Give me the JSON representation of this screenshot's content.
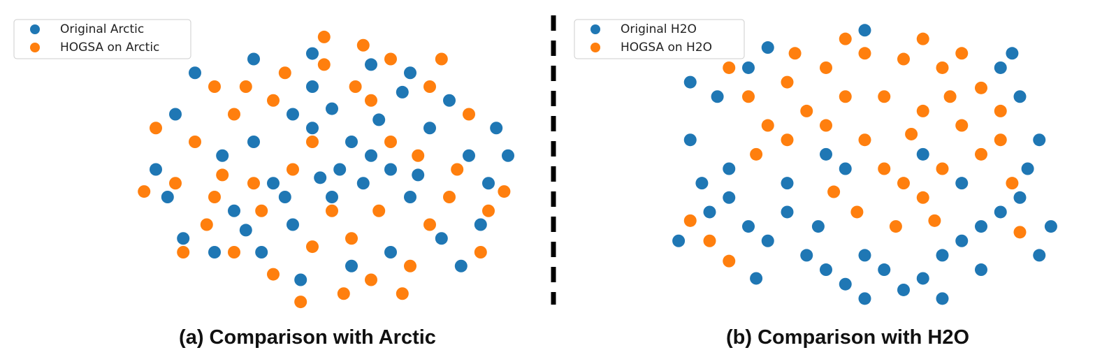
{
  "chart_data": [
    {
      "type": "scatter",
      "title": "(a) Comparison with Arctic",
      "xlim": [
        -50,
        50
      ],
      "ylim": [
        -50,
        50
      ],
      "legend": "upper left",
      "series": [
        {
          "name": "Original Arctic",
          "color": "#1f77b4",
          "x": [
            -10,
            -5,
            0,
            5,
            10,
            15,
            8,
            20,
            -20,
            -15,
            -25,
            -10,
            0,
            25,
            30,
            35,
            40,
            42,
            -40,
            -45,
            -42,
            -35,
            -20,
            -5,
            10,
            20,
            28,
            15,
            5,
            -8,
            -18,
            -30,
            -38,
            38,
            45,
            -28,
            2,
            -3,
            12,
            -12,
            22,
            -22,
            33,
            -5,
            18
          ],
          "values": [
            20,
            15,
            22,
            10,
            5,
            0,
            -5,
            -10,
            10,
            -5,
            -15,
            -20,
            -10,
            15,
            25,
            5,
            -5,
            15,
            20,
            0,
            -10,
            35,
            40,
            42,
            38,
            35,
            -25,
            -30,
            -35,
            -40,
            -30,
            -30,
            -25,
            -20,
            5,
            5,
            0,
            -3,
            18,
            -10,
            -2,
            -22,
            -35,
            30,
            28
          ]
        },
        {
          "name": "HOGSA on Arctic",
          "color": "#ff7f0e",
          "x": [
            -30,
            -25,
            -35,
            -40,
            -30,
            -32,
            -25,
            -15,
            -5,
            5,
            10,
            20,
            25,
            30,
            32,
            38,
            40,
            -10,
            -18,
            -12,
            -2,
            8,
            15,
            25,
            -22,
            -28,
            0,
            10,
            15,
            -5,
            -15,
            -45,
            -48,
            22,
            12,
            -8,
            3,
            18,
            28,
            -38,
            35,
            44,
            -20,
            6,
            -2
          ],
          "values": [
            30,
            20,
            10,
            -5,
            -10,
            -20,
            -30,
            -38,
            -28,
            -25,
            -40,
            -35,
            -20,
            -10,
            0,
            -30,
            -15,
            0,
            -15,
            35,
            38,
            45,
            40,
            30,
            30,
            -2,
            -15,
            25,
            10,
            10,
            25,
            15,
            -8,
            5,
            -15,
            -48,
            -45,
            -45,
            40,
            -30,
            20,
            -8,
            -5,
            30,
            48
          ]
        }
      ]
    },
    {
      "type": "scatter",
      "title": "(b) Comparison with H2O",
      "xlim": [
        -50,
        50
      ],
      "ylim": [
        -50,
        50
      ],
      "legend": "upper left",
      "series": [
        {
          "name": "Original H2O",
          "color": "#1f77b4",
          "x": [
            -45,
            -42,
            -40,
            -35,
            -30,
            -25,
            -20,
            -15,
            -10,
            -5,
            0,
            5,
            10,
            15,
            20,
            25,
            30,
            35,
            40,
            42,
            45,
            40,
            35,
            -38,
            -30,
            -20,
            -10,
            -5,
            -45,
            48,
            30,
            -28,
            0,
            20,
            -48,
            45,
            15,
            -12,
            25,
            -35,
            38,
            -25,
            0
          ],
          "values": [
            10,
            -5,
            -15,
            -10,
            -20,
            -25,
            -15,
            -30,
            -35,
            -40,
            -30,
            -35,
            -42,
            -38,
            -30,
            -25,
            -20,
            -15,
            -10,
            0,
            10,
            25,
            35,
            25,
            35,
            -5,
            5,
            0,
            30,
            -20,
            -35,
            -38,
            -45,
            -45,
            -25,
            -30,
            5,
            -20,
            -5,
            0,
            40,
            42,
            48
          ]
        },
        {
          "name": "HOGSA on H2O",
          "color": "#ff7f0e",
          "x": [
            -30,
            -25,
            -20,
            -10,
            0,
            10,
            20,
            30,
            -15,
            -5,
            5,
            15,
            25,
            35,
            0,
            5,
            10,
            15,
            -2,
            8,
            20,
            30,
            -20,
            -28,
            -5,
            15,
            -35,
            25,
            35,
            -10,
            -40,
            -35,
            -45,
            40,
            38,
            12,
            -18,
            22,
            -8,
            18
          ],
          "values": [
            25,
            15,
            30,
            35,
            40,
            38,
            35,
            28,
            20,
            25,
            25,
            20,
            15,
            20,
            10,
            0,
            -5,
            -10,
            -15,
            -20,
            0,
            5,
            10,
            5,
            45,
            45,
            35,
            40,
            10,
            15,
            -25,
            -32,
            -18,
            -22,
            -5,
            12,
            40,
            25,
            -8,
            -18
          ]
        }
      ]
    }
  ]
}
